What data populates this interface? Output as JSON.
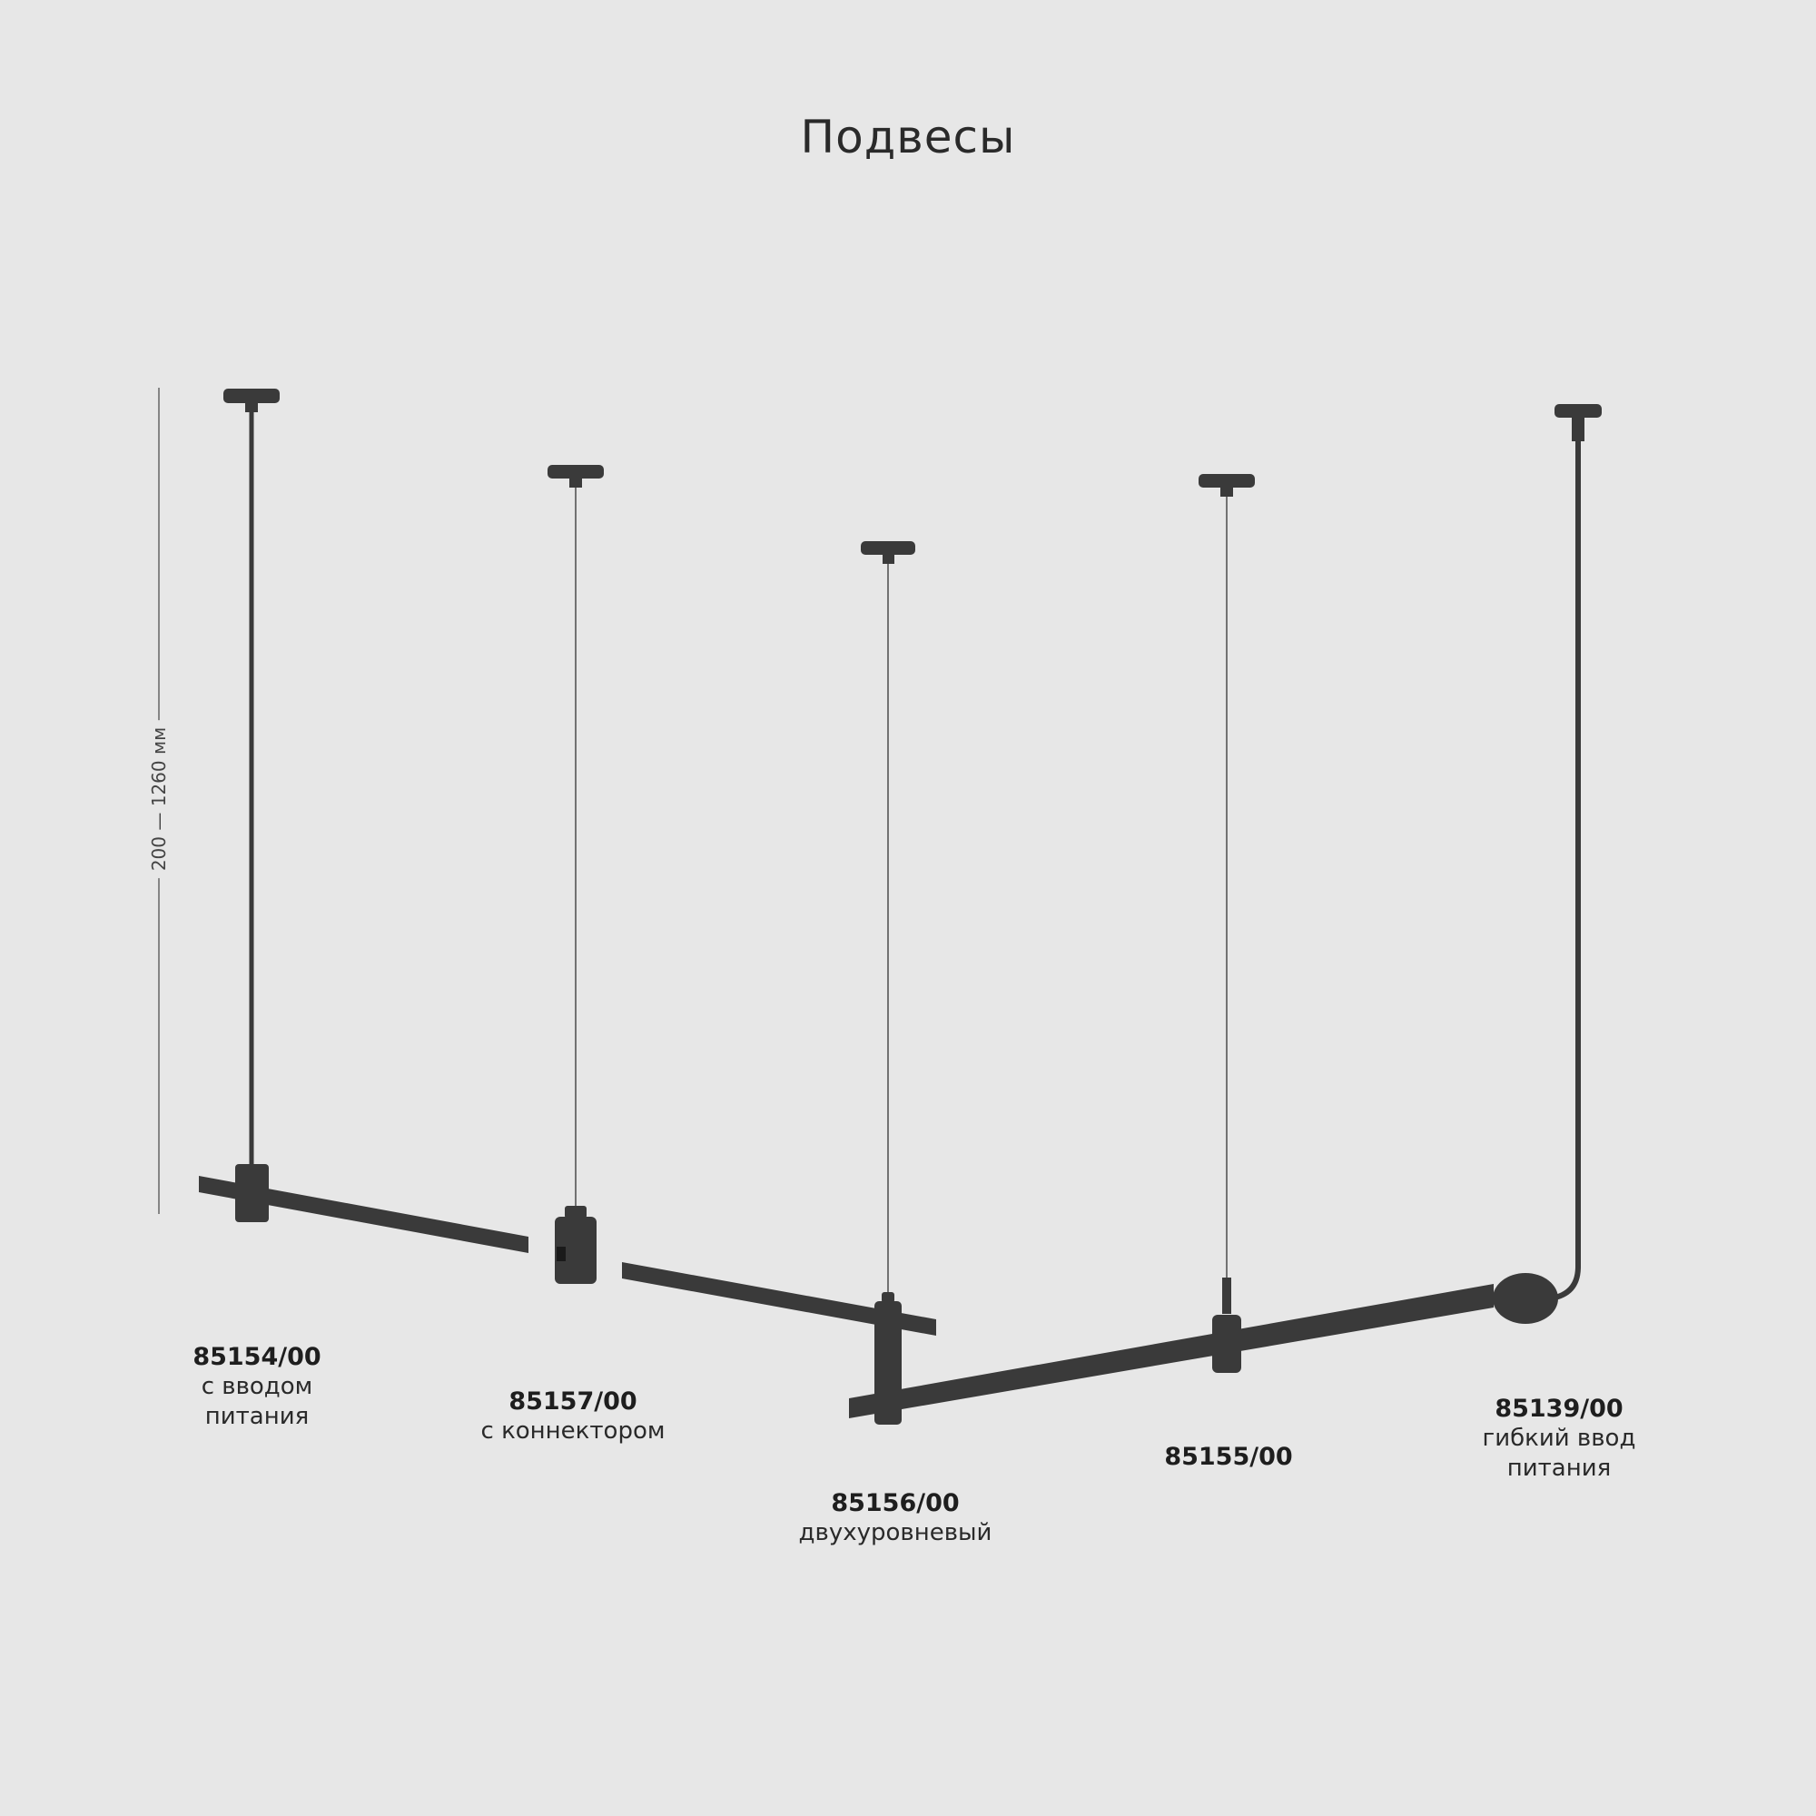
{
  "title": "Подвесы",
  "dimension": "200 — 1260 мм",
  "colors": {
    "background": "#e7e7e7",
    "product": "#3a3a3a"
  },
  "products": [
    {
      "code": "85154/00",
      "desc1": "с вводом",
      "desc2": "питания"
    },
    {
      "code": "85157/00",
      "desc1": "с коннектором"
    },
    {
      "code": "85156/00",
      "desc1": "двухуровневый"
    },
    {
      "code": "85155/00"
    },
    {
      "code": "85139/00",
      "desc1": "гибкий ввод",
      "desc2": "питания"
    }
  ]
}
